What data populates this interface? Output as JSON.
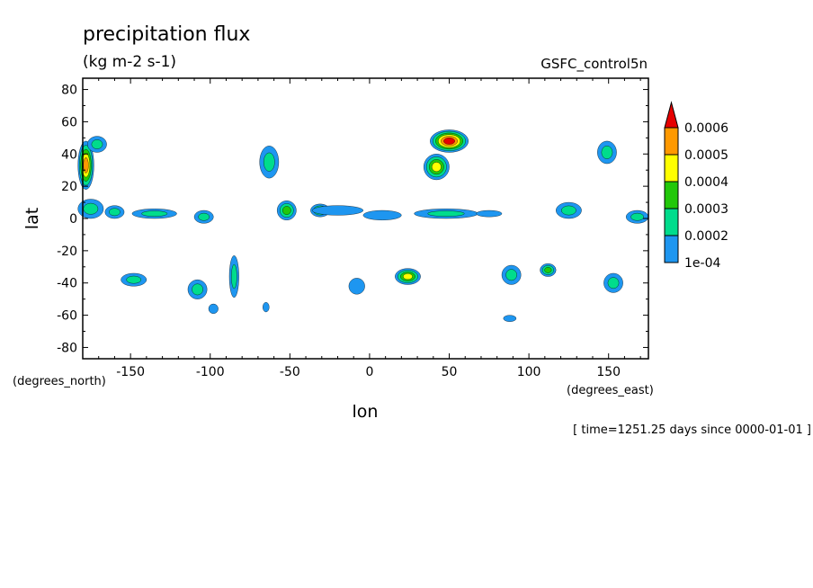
{
  "chart_data": {
    "type": "heatmap",
    "subtype": "filled-contour map",
    "title": "precipitation flux",
    "subtitle": "(kg m-2 s-1)",
    "dataset": "GSFC_control5n",
    "xlabel": "lon",
    "ylabel": "lat",
    "x_units": "(degrees_east)",
    "y_units": "(degrees_north)",
    "time_caption": "[ time=1251.25 days since 0000-01-01 ]",
    "xlim": [
      -180,
      175
    ],
    "ylim": [
      -87,
      87
    ],
    "x_ticks": [
      -150,
      -100,
      -50,
      0,
      50,
      100,
      150
    ],
    "y_ticks": [
      80,
      60,
      40,
      20,
      0,
      -20,
      -40,
      -60,
      -80
    ],
    "x_tick_labels": [
      "-150",
      "-100",
      "-50",
      "0",
      "50",
      "100",
      "150"
    ],
    "y_tick_labels": [
      "80",
      "60",
      "40",
      "20",
      "0",
      "-20",
      "-40",
      "-60",
      "-80"
    ],
    "grid": false,
    "legend_position": "right",
    "colorbar": {
      "labels": [
        "0.0006",
        "0.0005",
        "0.0004",
        "0.0003",
        "0.0002",
        "1e-04"
      ],
      "levels": [
        0.0001,
        0.0002,
        0.0003,
        0.0004,
        0.0005,
        0.0006
      ],
      "colors": [
        "#1e96f0",
        "#00dc8c",
        "#22c80a",
        "#ffff00",
        "#ff9900",
        "#e60000"
      ]
    },
    "features": [
      {
        "lon": -178,
        "lat": 33,
        "rx": 5,
        "ry": 15,
        "level": 5
      },
      {
        "lon": -171,
        "lat": 46,
        "rx": 6,
        "ry": 5,
        "level": 2
      },
      {
        "lon": -175,
        "lat": 6,
        "rx": 8,
        "ry": 6,
        "level": 2
      },
      {
        "lon": -160,
        "lat": 4,
        "rx": 6,
        "ry": 4,
        "level": 2
      },
      {
        "lon": -135,
        "lat": 3,
        "rx": 14,
        "ry": 3,
        "level": 2
      },
      {
        "lon": -104,
        "lat": 1,
        "rx": 6,
        "ry": 4,
        "level": 2
      },
      {
        "lon": -63,
        "lat": 35,
        "rx": 6,
        "ry": 10,
        "level": 2
      },
      {
        "lon": -52,
        "lat": 5,
        "rx": 6,
        "ry": 6,
        "level": 3
      },
      {
        "lon": -31,
        "lat": 5,
        "rx": 6,
        "ry": 4,
        "level": 3
      },
      {
        "lon": -20,
        "lat": 5,
        "rx": 16,
        "ry": 3,
        "level": 1
      },
      {
        "lon": 8,
        "lat": 2,
        "rx": 12,
        "ry": 3,
        "level": 1
      },
      {
        "lon": 50,
        "lat": 48,
        "rx": 12,
        "ry": 7,
        "level": 6
      },
      {
        "lon": 42,
        "lat": 32,
        "rx": 8,
        "ry": 8,
        "level": 4
      },
      {
        "lon": 48,
        "lat": 3,
        "rx": 20,
        "ry": 3,
        "level": 2
      },
      {
        "lon": 75,
        "lat": 3,
        "rx": 8,
        "ry": 2,
        "level": 1
      },
      {
        "lon": 125,
        "lat": 5,
        "rx": 8,
        "ry": 5,
        "level": 2
      },
      {
        "lon": 149,
        "lat": 41,
        "rx": 6,
        "ry": 7,
        "level": 2
      },
      {
        "lon": 168,
        "lat": 1,
        "rx": 7,
        "ry": 4,
        "level": 2
      },
      {
        "lon": -148,
        "lat": -38,
        "rx": 8,
        "ry": 4,
        "level": 2
      },
      {
        "lon": -108,
        "lat": -44,
        "rx": 6,
        "ry": 6,
        "level": 2
      },
      {
        "lon": -85,
        "lat": -36,
        "rx": 3,
        "ry": 13,
        "level": 2
      },
      {
        "lon": 24,
        "lat": -36,
        "rx": 8,
        "ry": 5,
        "level": 4
      },
      {
        "lon": 89,
        "lat": -35,
        "rx": 6,
        "ry": 6,
        "level": 2
      },
      {
        "lon": 112,
        "lat": -32,
        "rx": 5,
        "ry": 4,
        "level": 3
      },
      {
        "lon": 153,
        "lat": -40,
        "rx": 6,
        "ry": 6,
        "level": 2
      },
      {
        "lon": -98,
        "lat": -56,
        "rx": 3,
        "ry": 3,
        "level": 1
      },
      {
        "lon": -65,
        "lat": -55,
        "rx": 2,
        "ry": 3,
        "level": 1
      },
      {
        "lon": -8,
        "lat": -42,
        "rx": 5,
        "ry": 5,
        "level": 1
      },
      {
        "lon": 88,
        "lat": -62,
        "rx": 4,
        "ry": 2,
        "level": 1
      }
    ]
  }
}
